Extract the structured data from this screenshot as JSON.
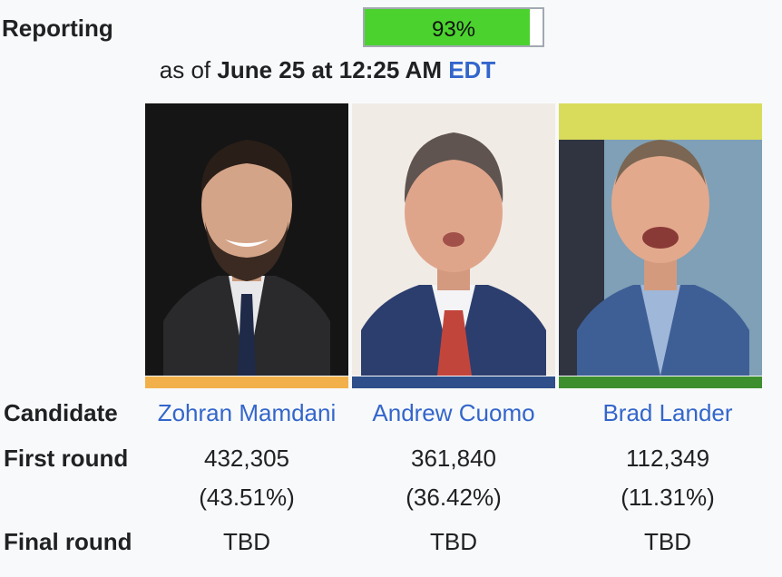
{
  "reporting": {
    "label": "Reporting",
    "percent_text": "93%",
    "percent_value": 0.93,
    "bar_color": "#4bd22f"
  },
  "as_of": {
    "prefix": "as of",
    "datetime": "June 25 at 12:25 AM",
    "timezone": "EDT"
  },
  "rows": {
    "candidate": "Candidate",
    "first_round": "First round",
    "final_round": "Final round"
  },
  "candidates": [
    {
      "name": "Zohran Mamdani",
      "color": "#f2b04b",
      "first_round_votes": "432,305",
      "first_round_pct": "(43.51%)",
      "final_round": "TBD"
    },
    {
      "name": "Andrew Cuomo",
      "color": "#2e4f8a",
      "first_round_votes": "361,840",
      "first_round_pct": "(36.42%)",
      "final_round": "TBD"
    },
    {
      "name": "Brad Lander",
      "color": "#3d8f2e",
      "first_round_votes": "112,349",
      "first_round_pct": "(11.31%)",
      "final_round": "TBD"
    }
  ]
}
